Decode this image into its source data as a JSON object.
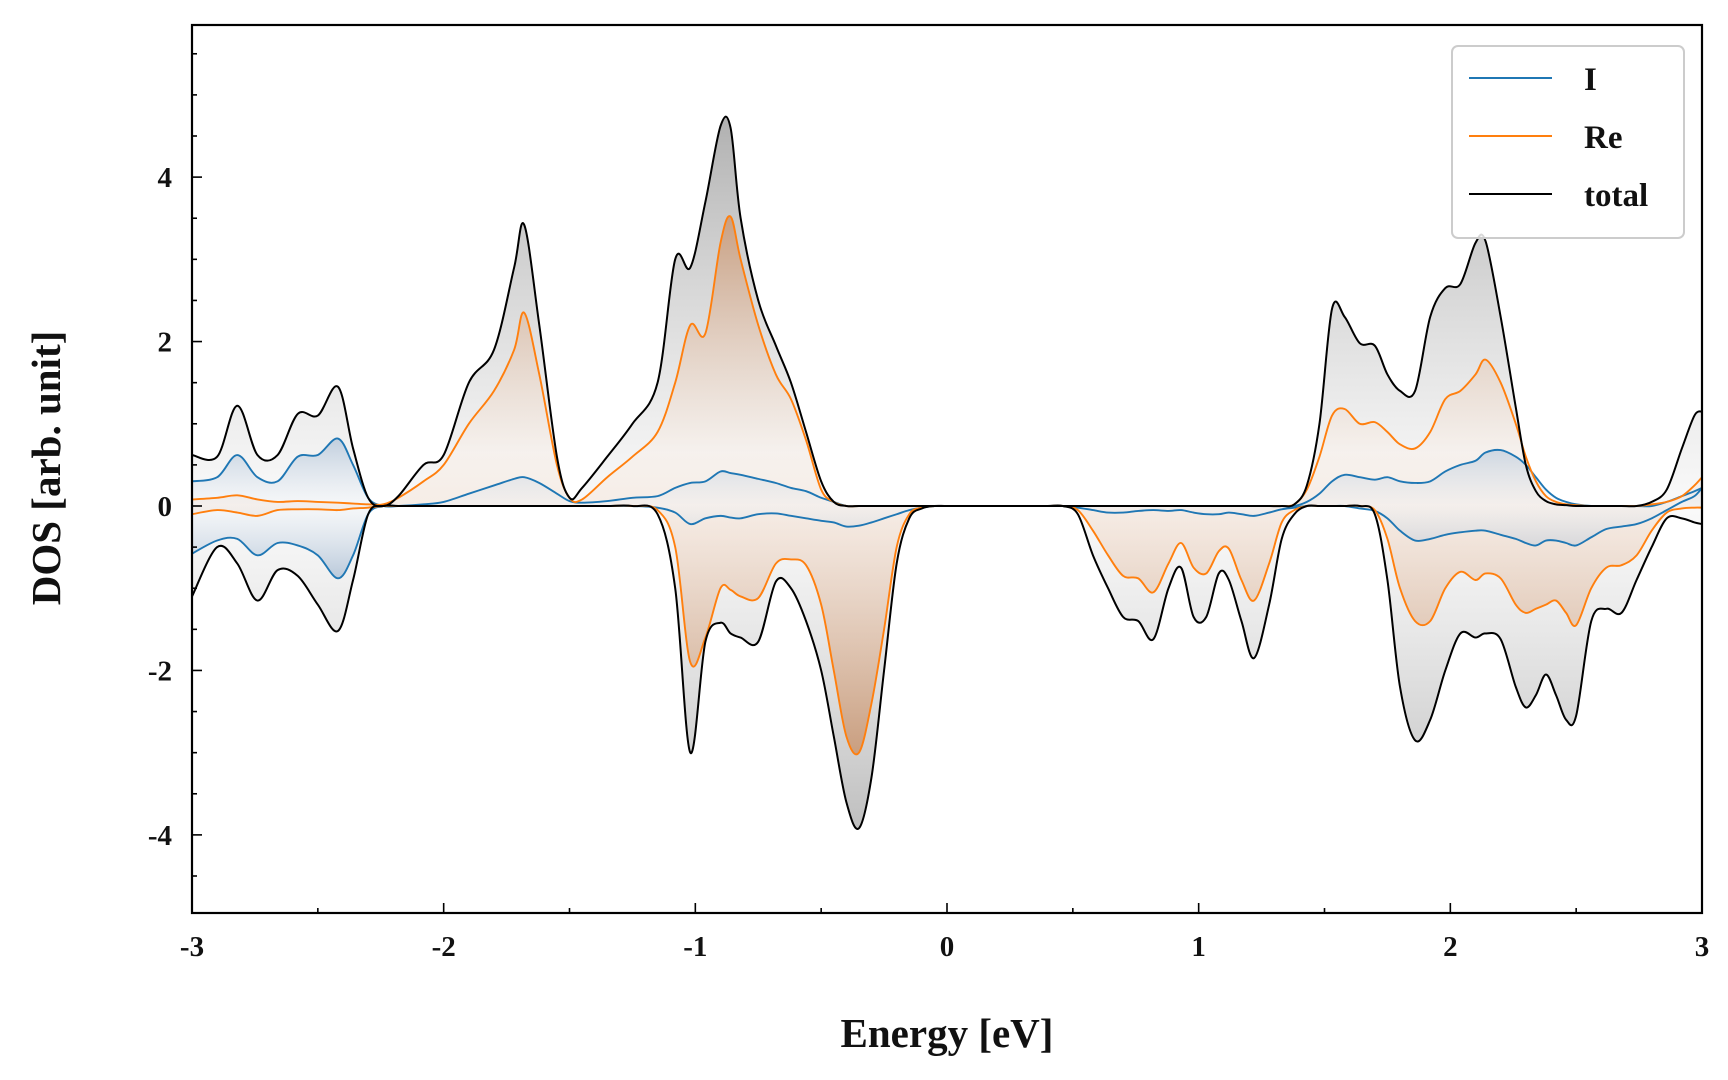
{
  "chart_data": {
    "type": "line",
    "title": "",
    "xlabel": "Energy [eV]",
    "ylabel": "DOS [arb. unit]",
    "xlim": [
      -3,
      3
    ],
    "ylim": [
      -4.95,
      5.85
    ],
    "xticks": [
      -3,
      -2,
      -1,
      0,
      1,
      2,
      3
    ],
    "xtick_labels": [
      "-3",
      "-2",
      "-1",
      "0",
      "1",
      "2",
      "3"
    ],
    "yticks": [
      -4,
      -2,
      0,
      2,
      4
    ],
    "ytick_labels": [
      "-4",
      "-2",
      "0",
      "2",
      "4"
    ],
    "grid": false,
    "legend_position": "top-right",
    "x": [
      -3.0,
      -2.9,
      -2.82,
      -2.74,
      -2.66,
      -2.58,
      -2.5,
      -2.42,
      -2.36,
      -2.3,
      -2.24,
      -2.18,
      -2.08,
      -2.0,
      -1.9,
      -1.8,
      -1.72,
      -1.68,
      -1.62,
      -1.55,
      -1.5,
      -1.45,
      -1.35,
      -1.25,
      -1.15,
      -1.08,
      -1.02,
      -0.96,
      -0.9,
      -0.86,
      -0.82,
      -0.75,
      -0.68,
      -0.62,
      -0.56,
      -0.5,
      -0.45,
      -0.4,
      -0.35,
      -0.3,
      -0.25,
      -0.2,
      -0.15,
      -0.1,
      -0.05,
      0.0,
      0.1,
      0.2,
      0.3,
      0.4,
      0.46,
      0.52,
      0.58,
      0.64,
      0.7,
      0.76,
      0.82,
      0.88,
      0.93,
      0.98,
      1.03,
      1.08,
      1.12,
      1.17,
      1.22,
      1.28,
      1.33,
      1.38,
      1.43,
      1.48,
      1.53,
      1.58,
      1.64,
      1.7,
      1.75,
      1.8,
      1.86,
      1.92,
      1.98,
      2.04,
      2.1,
      2.14,
      2.2,
      2.26,
      2.3,
      2.34,
      2.38,
      2.42,
      2.46,
      2.5,
      2.56,
      2.62,
      2.68,
      2.74,
      2.8,
      2.86,
      2.92,
      2.97,
      3.0
    ],
    "series": [
      {
        "name": "I",
        "color": "#1f77b4",
        "spin_up": [
          0.3,
          0.35,
          0.62,
          0.35,
          0.3,
          0.6,
          0.62,
          0.82,
          0.5,
          0.1,
          0.0,
          0.0,
          0.02,
          0.05,
          0.15,
          0.25,
          0.33,
          0.35,
          0.28,
          0.15,
          0.06,
          0.04,
          0.06,
          0.1,
          0.12,
          0.22,
          0.28,
          0.3,
          0.42,
          0.4,
          0.38,
          0.33,
          0.28,
          0.22,
          0.18,
          0.1,
          0.05,
          0.0,
          0.0,
          0.0,
          0.0,
          0.0,
          0.0,
          0.0,
          0.0,
          0.0,
          0.0,
          0.0,
          0.0,
          0.0,
          0.0,
          0.0,
          0.0,
          0.0,
          0.0,
          0.0,
          0.0,
          0.0,
          0.0,
          0.0,
          0.0,
          0.0,
          0.0,
          0.0,
          0.0,
          0.0,
          0.0,
          0.0,
          0.05,
          0.15,
          0.3,
          0.38,
          0.35,
          0.32,
          0.35,
          0.3,
          0.28,
          0.3,
          0.42,
          0.5,
          0.55,
          0.65,
          0.68,
          0.6,
          0.5,
          0.35,
          0.2,
          0.1,
          0.05,
          0.02,
          0.0,
          0.0,
          0.0,
          0.0,
          0.0,
          0.05,
          0.12,
          0.18,
          0.22
        ],
        "spin_down": [
          -0.58,
          -0.42,
          -0.4,
          -0.6,
          -0.45,
          -0.48,
          -0.6,
          -0.88,
          -0.6,
          -0.1,
          0.0,
          0.0,
          0.0,
          0.0,
          0.0,
          0.0,
          0.0,
          0.0,
          0.0,
          0.0,
          0.0,
          0.0,
          0.0,
          0.0,
          -0.02,
          -0.08,
          -0.22,
          -0.15,
          -0.12,
          -0.14,
          -0.15,
          -0.1,
          -0.09,
          -0.12,
          -0.15,
          -0.18,
          -0.2,
          -0.25,
          -0.24,
          -0.2,
          -0.15,
          -0.1,
          -0.05,
          -0.02,
          0.0,
          0.0,
          0.0,
          0.0,
          0.0,
          0.0,
          0.0,
          -0.02,
          -0.05,
          -0.08,
          -0.08,
          -0.06,
          -0.05,
          -0.06,
          -0.05,
          -0.08,
          -0.1,
          -0.1,
          -0.08,
          -0.1,
          -0.12,
          -0.08,
          -0.04,
          -0.02,
          0.0,
          0.0,
          0.0,
          0.0,
          -0.03,
          -0.06,
          -0.15,
          -0.3,
          -0.42,
          -0.4,
          -0.35,
          -0.32,
          -0.3,
          -0.3,
          -0.35,
          -0.4,
          -0.45,
          -0.48,
          -0.42,
          -0.42,
          -0.45,
          -0.48,
          -0.38,
          -0.28,
          -0.25,
          -0.22,
          -0.15,
          -0.05,
          0.05,
          0.12,
          0.22
        ]
      },
      {
        "name": "Re",
        "color": "#ff7f0e",
        "spin_up": [
          0.08,
          0.1,
          0.13,
          0.08,
          0.05,
          0.06,
          0.05,
          0.04,
          0.03,
          0.02,
          0.02,
          0.1,
          0.3,
          0.5,
          1.0,
          1.4,
          1.9,
          2.35,
          1.6,
          0.5,
          0.1,
          0.08,
          0.35,
          0.6,
          0.9,
          1.5,
          2.2,
          2.1,
          3.2,
          3.52,
          3.0,
          2.2,
          1.6,
          1.3,
          0.8,
          0.2,
          0.05,
          0.0,
          0.0,
          0.0,
          0.0,
          0.0,
          0.0,
          0.0,
          0.0,
          0.0,
          0.0,
          0.0,
          0.0,
          0.0,
          0.0,
          0.0,
          0.0,
          0.0,
          0.0,
          0.0,
          0.0,
          0.0,
          0.0,
          0.0,
          0.0,
          0.0,
          0.0,
          0.0,
          0.0,
          0.0,
          0.0,
          0.02,
          0.2,
          0.6,
          1.1,
          1.18,
          1.0,
          1.02,
          0.9,
          0.75,
          0.7,
          0.9,
          1.3,
          1.4,
          1.6,
          1.78,
          1.5,
          1.0,
          0.6,
          0.3,
          0.12,
          0.05,
          0.02,
          0.01,
          0.0,
          0.0,
          0.0,
          0.0,
          0.02,
          0.05,
          0.12,
          0.25,
          0.35
        ],
        "spin_down": [
          -0.1,
          -0.05,
          -0.08,
          -0.12,
          -0.05,
          -0.04,
          -0.04,
          -0.05,
          -0.03,
          -0.02,
          0.0,
          0.0,
          0.0,
          0.0,
          0.0,
          0.0,
          0.0,
          0.0,
          0.0,
          0.0,
          0.0,
          0.0,
          0.0,
          0.0,
          -0.05,
          -0.5,
          -1.9,
          -1.6,
          -1.0,
          -1.02,
          -1.1,
          -1.12,
          -0.7,
          -0.65,
          -0.72,
          -1.2,
          -2.0,
          -2.8,
          -3.0,
          -2.4,
          -1.5,
          -0.5,
          -0.1,
          -0.02,
          0.0,
          0.0,
          0.0,
          0.0,
          0.0,
          0.0,
          0.0,
          -0.05,
          -0.3,
          -0.6,
          -0.85,
          -0.88,
          -1.05,
          -0.7,
          -0.45,
          -0.75,
          -0.82,
          -0.55,
          -0.52,
          -0.9,
          -1.15,
          -0.7,
          -0.2,
          -0.05,
          0.0,
          0.0,
          0.0,
          0.0,
          0.0,
          -0.05,
          -0.4,
          -1.0,
          -1.4,
          -1.4,
          -1.0,
          -0.8,
          -0.9,
          -0.82,
          -0.88,
          -1.2,
          -1.3,
          -1.25,
          -1.2,
          -1.15,
          -1.3,
          -1.45,
          -1.0,
          -0.75,
          -0.72,
          -0.6,
          -0.3,
          -0.08,
          -0.03,
          -0.02,
          -0.02
        ]
      },
      {
        "name": "total",
        "color": "#000000",
        "spin_up": [
          0.62,
          0.6,
          1.22,
          0.62,
          0.62,
          1.12,
          1.1,
          1.45,
          0.7,
          0.1,
          0.0,
          0.12,
          0.5,
          0.62,
          1.5,
          1.9,
          2.9,
          3.42,
          2.2,
          0.6,
          0.1,
          0.22,
          0.6,
          1.0,
          1.5,
          3.0,
          2.9,
          3.7,
          4.62,
          4.6,
          3.5,
          2.5,
          1.95,
          1.5,
          0.9,
          0.3,
          0.05,
          0.0,
          0.0,
          0.0,
          0.0,
          0.0,
          0.0,
          0.0,
          0.0,
          0.0,
          0.0,
          0.0,
          0.0,
          0.0,
          0.0,
          0.0,
          0.0,
          0.0,
          0.0,
          0.0,
          0.0,
          0.0,
          0.0,
          0.0,
          0.0,
          0.0,
          0.0,
          0.0,
          0.0,
          0.0,
          0.0,
          0.02,
          0.25,
          1.0,
          2.4,
          2.3,
          1.98,
          1.95,
          1.6,
          1.4,
          1.4,
          2.3,
          2.65,
          2.7,
          3.2,
          3.22,
          2.3,
          1.2,
          0.5,
          0.18,
          0.06,
          0.02,
          0.01,
          0.0,
          0.0,
          0.0,
          0.0,
          0.0,
          0.05,
          0.2,
          0.7,
          1.1,
          1.15
        ],
        "spin_down": [
          -1.1,
          -0.5,
          -0.7,
          -1.15,
          -0.78,
          -0.85,
          -1.2,
          -1.52,
          -0.9,
          -0.1,
          0.0,
          0.0,
          0.0,
          0.0,
          0.0,
          0.0,
          0.0,
          0.0,
          0.0,
          0.0,
          0.0,
          0.0,
          0.0,
          0.0,
          -0.1,
          -1.0,
          -3.0,
          -1.65,
          -1.42,
          -1.55,
          -1.6,
          -1.65,
          -0.92,
          -1.0,
          -1.4,
          -2.0,
          -2.8,
          -3.6,
          -3.92,
          -3.3,
          -2.0,
          -0.7,
          -0.15,
          -0.03,
          0.0,
          0.0,
          0.0,
          0.0,
          0.0,
          0.0,
          0.0,
          -0.1,
          -0.6,
          -1.0,
          -1.35,
          -1.4,
          -1.62,
          -1.0,
          -0.75,
          -1.35,
          -1.35,
          -0.82,
          -0.9,
          -1.4,
          -1.85,
          -1.2,
          -0.4,
          -0.1,
          0.0,
          0.0,
          0.0,
          0.0,
          0.0,
          -0.1,
          -0.9,
          -2.2,
          -2.85,
          -2.6,
          -2.0,
          -1.55,
          -1.6,
          -1.55,
          -1.62,
          -2.2,
          -2.45,
          -2.3,
          -2.05,
          -2.3,
          -2.6,
          -2.55,
          -1.4,
          -1.25,
          -1.3,
          -0.9,
          -0.5,
          -0.15,
          -0.15,
          -0.2,
          -0.22
        ]
      }
    ]
  }
}
